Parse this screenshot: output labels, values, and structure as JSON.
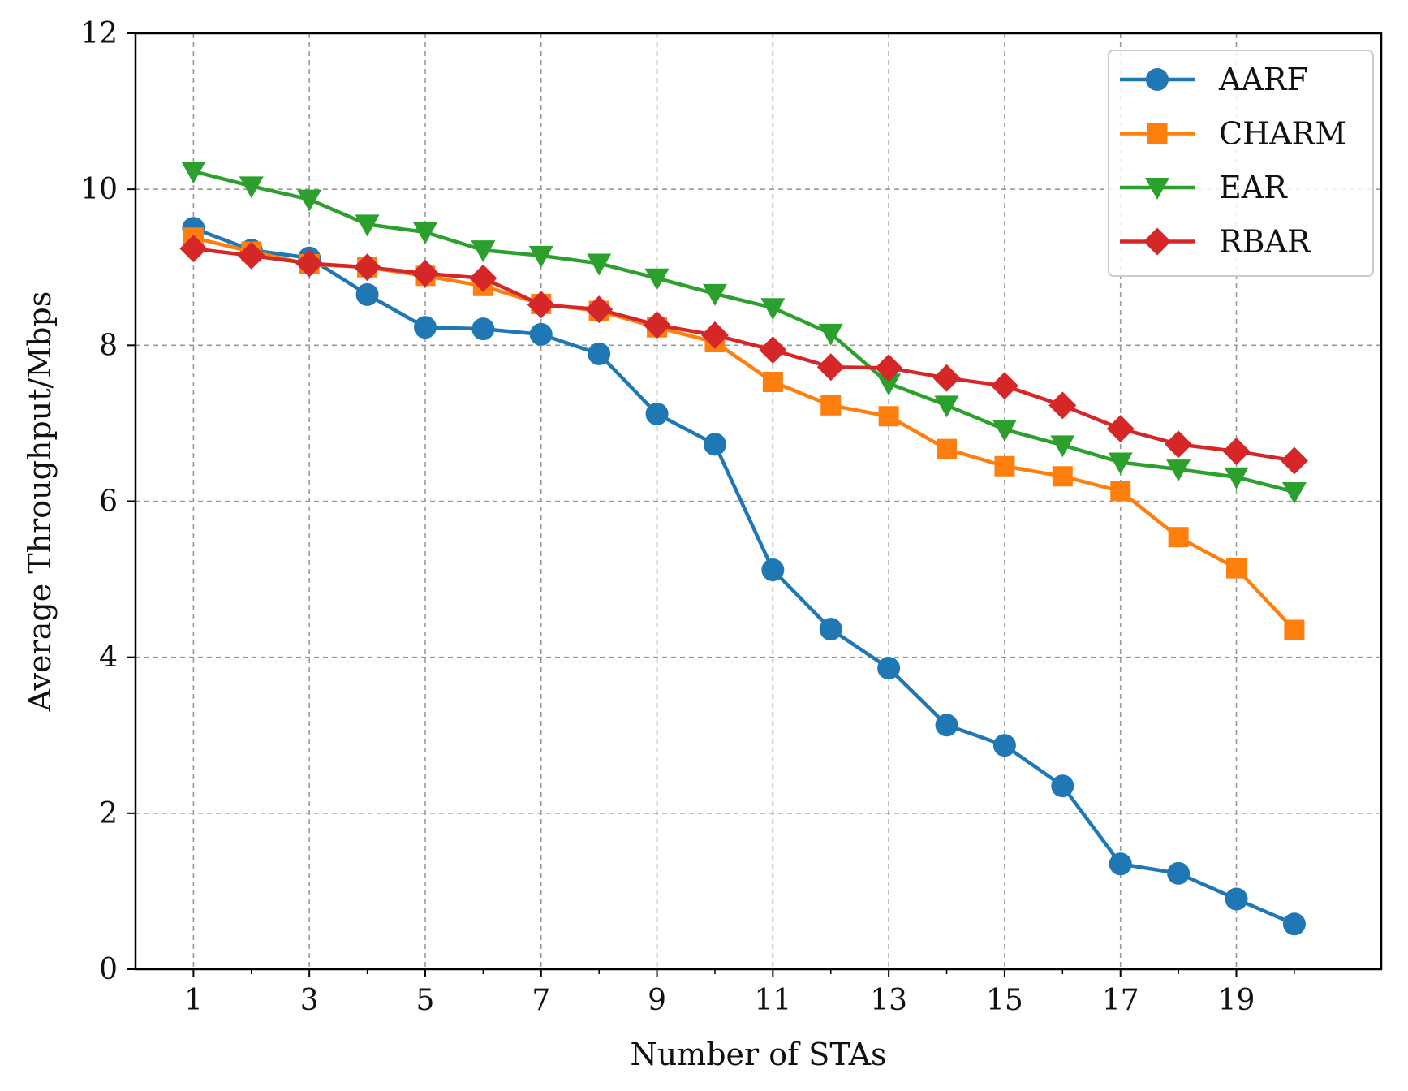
{
  "chart_data": {
    "type": "line",
    "title": "",
    "xlabel": "Number of STAs",
    "ylabel": "Average Throughput/Mbps",
    "xlim": [
      0,
      21.5
    ],
    "ylim": [
      0,
      12
    ],
    "x": [
      1,
      2,
      3,
      4,
      5,
      6,
      7,
      8,
      9,
      10,
      11,
      12,
      13,
      14,
      15,
      16,
      17,
      18,
      19,
      20
    ],
    "xticks": [
      1,
      3,
      5,
      7,
      9,
      11,
      13,
      15,
      17,
      19
    ],
    "yticks": [
      0,
      2,
      4,
      6,
      8,
      10,
      12
    ],
    "grid": true,
    "legend_position": "top-right",
    "series": [
      {
        "name": "AARF",
        "color": "#1f77b4",
        "marker": "circle",
        "values": [
          9.5,
          9.22,
          9.12,
          8.65,
          8.23,
          8.21,
          8.14,
          7.89,
          7.12,
          6.73,
          5.12,
          4.36,
          3.86,
          3.13,
          2.87,
          2.35,
          1.35,
          1.23,
          0.9,
          0.58
        ]
      },
      {
        "name": "CHARM",
        "color": "#ff7f0e",
        "marker": "square",
        "values": [
          9.38,
          9.2,
          9.04,
          9.0,
          8.89,
          8.76,
          8.53,
          8.44,
          8.23,
          8.04,
          7.53,
          7.23,
          7.09,
          6.67,
          6.45,
          6.32,
          6.13,
          5.54,
          5.14,
          4.35
        ]
      },
      {
        "name": "EAR",
        "color": "#2ca02c",
        "marker": "triangle-down",
        "values": [
          10.23,
          10.04,
          9.87,
          9.55,
          9.45,
          9.22,
          9.15,
          9.05,
          8.86,
          8.66,
          8.48,
          8.15,
          7.51,
          7.23,
          6.92,
          6.72,
          6.5,
          6.41,
          6.31,
          6.12
        ]
      },
      {
        "name": "RBAR",
        "color": "#d62728",
        "marker": "diamond",
        "values": [
          9.24,
          9.15,
          9.05,
          9.0,
          8.92,
          8.86,
          8.52,
          8.46,
          8.26,
          8.13,
          7.94,
          7.72,
          7.71,
          7.58,
          7.48,
          7.23,
          6.93,
          6.73,
          6.64,
          6.52
        ]
      }
    ]
  }
}
